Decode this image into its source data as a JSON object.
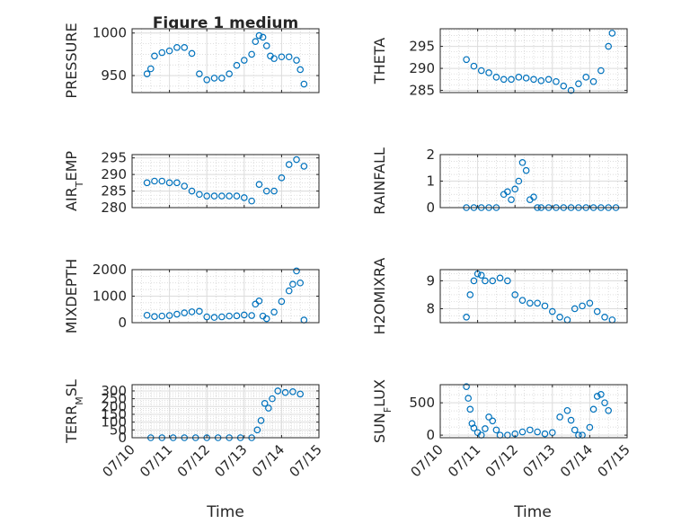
{
  "figure": {
    "title": "Figure 1 medium",
    "xlabel": "Time",
    "x_ticks": [
      "07/10",
      "07/11",
      "07/12",
      "07/13",
      "07/14",
      "07/15"
    ],
    "marker_color": "#0072bd",
    "grid": true
  },
  "chart_data": [
    {
      "type": "scatter",
      "ylabel": "PRESSURE",
      "ylim": [
        930,
        1005
      ],
      "yticks": [
        950,
        1000
      ],
      "xlim": [
        0,
        5
      ],
      "x": [
        0.4,
        0.5,
        0.6,
        0.8,
        1.0,
        1.2,
        1.4,
        1.6,
        1.8,
        2.0,
        2.2,
        2.4,
        2.6,
        2.8,
        3.0,
        3.2,
        3.3,
        3.4,
        3.5,
        3.6,
        3.7,
        3.8,
        4.0,
        4.2,
        4.4,
        4.5,
        4.6
      ],
      "y": [
        952,
        958,
        973,
        977,
        979,
        983,
        983,
        976,
        952,
        945,
        947,
        947,
        952,
        962,
        968,
        975,
        990,
        997,
        995,
        985,
        973,
        970,
        972,
        972,
        968,
        957,
        940
      ]
    },
    {
      "type": "scatter",
      "ylabel": "THETA",
      "ylim": [
        284.5,
        299
      ],
      "yticks": [
        285,
        290,
        295
      ],
      "xlim": [
        0,
        5
      ],
      "x": [
        0.7,
        0.9,
        1.1,
        1.3,
        1.5,
        1.7,
        1.9,
        2.1,
        2.3,
        2.5,
        2.7,
        2.9,
        3.1,
        3.3,
        3.5,
        3.7,
        3.9,
        4.1,
        4.3,
        4.5,
        4.6
      ],
      "y": [
        292,
        290.5,
        289.5,
        289,
        288,
        287.5,
        287.5,
        288,
        287.8,
        287.5,
        287.2,
        287.5,
        287,
        286,
        285,
        286.5,
        288,
        287,
        289.5,
        295,
        298
      ]
    },
    {
      "type": "scatter",
      "ylabel": "AIR_TEMP",
      "ylim": [
        280,
        296
      ],
      "yticks": [
        280,
        285,
        290,
        295
      ],
      "xlim": [
        0,
        5
      ],
      "x": [
        0.4,
        0.6,
        0.8,
        1.0,
        1.2,
        1.4,
        1.6,
        1.8,
        2.0,
        2.2,
        2.4,
        2.6,
        2.8,
        3.0,
        3.2,
        3.4,
        3.6,
        3.8,
        4.0,
        4.2,
        4.4,
        4.6
      ],
      "y": [
        287.5,
        288,
        288,
        287.5,
        287.5,
        286.5,
        285,
        284,
        283.5,
        283.5,
        283.5,
        283.5,
        283.5,
        283,
        282,
        287,
        285,
        285,
        289,
        293,
        294.5,
        292.5
      ]
    },
    {
      "type": "scatter",
      "ylabel": "RAINFALL",
      "ylim": [
        0,
        2
      ],
      "yticks": [
        0,
        1,
        2
      ],
      "xlim": [
        0,
        5
      ],
      "x": [
        0.7,
        0.9,
        1.1,
        1.3,
        1.5,
        1.7,
        1.8,
        1.9,
        2.0,
        2.1,
        2.2,
        2.3,
        2.4,
        2.5,
        2.6,
        2.7,
        2.9,
        3.1,
        3.3,
        3.5,
        3.7,
        3.9,
        4.1,
        4.3,
        4.5,
        4.7
      ],
      "y": [
        0,
        0,
        0,
        0,
        0,
        0.5,
        0.6,
        0.3,
        0.7,
        1.0,
        1.7,
        1.4,
        0.3,
        0.4,
        0,
        0,
        0,
        0,
        0,
        0,
        0,
        0,
        0,
        0,
        0,
        0
      ]
    },
    {
      "type": "scatter",
      "ylabel": "MIXDEPTH",
      "ylim": [
        0,
        2000
      ],
      "yticks": [
        0,
        1000,
        2000
      ],
      "xlim": [
        0,
        5
      ],
      "x": [
        0.4,
        0.6,
        0.8,
        1.0,
        1.2,
        1.4,
        1.6,
        1.8,
        2.0,
        2.2,
        2.4,
        2.6,
        2.8,
        3.0,
        3.2,
        3.3,
        3.4,
        3.5,
        3.6,
        3.8,
        4.0,
        4.2,
        4.3,
        4.4,
        4.5,
        4.6
      ],
      "y": [
        280,
        230,
        250,
        270,
        320,
        370,
        410,
        430,
        220,
        200,
        220,
        250,
        260,
        290,
        270,
        700,
        820,
        250,
        150,
        400,
        800,
        1200,
        1450,
        1950,
        1500,
        100
      ]
    },
    {
      "type": "scatter",
      "ylabel": "H2OMIXRA",
      "ylim": [
        7.5,
        9.4
      ],
      "yticks": [
        8,
        9
      ],
      "xlim": [
        0,
        5
      ],
      "x": [
        0.7,
        0.8,
        0.9,
        1.0,
        1.1,
        1.2,
        1.4,
        1.6,
        1.8,
        2.0,
        2.2,
        2.4,
        2.6,
        2.8,
        3.0,
        3.2,
        3.4,
        3.6,
        3.8,
        4.0,
        4.2,
        4.4,
        4.6
      ],
      "y": [
        7.7,
        8.5,
        9.0,
        9.25,
        9.2,
        9.0,
        9.0,
        9.1,
        9.0,
        8.5,
        8.3,
        8.2,
        8.2,
        8.1,
        7.9,
        7.7,
        7.6,
        8.0,
        8.1,
        8.2,
        7.9,
        7.7,
        7.6
      ]
    },
    {
      "type": "scatter",
      "ylabel": "TERR_MSL",
      "ylim": [
        0,
        340
      ],
      "yticks": [
        0,
        50,
        100,
        150,
        200,
        250,
        300
      ],
      "xlim": [
        0,
        5
      ],
      "x": [
        0.5,
        0.8,
        1.1,
        1.4,
        1.7,
        2.0,
        2.3,
        2.6,
        2.9,
        3.2,
        3.35,
        3.45,
        3.55,
        3.65,
        3.75,
        3.9,
        4.1,
        4.3,
        4.5
      ],
      "y": [
        0,
        0,
        0,
        0,
        0,
        0,
        0,
        0,
        0,
        0,
        50,
        110,
        220,
        190,
        250,
        300,
        290,
        295,
        280
      ]
    },
    {
      "type": "scatter",
      "ylabel": "SUN_FLUX",
      "ylim": [
        -40,
        780
      ],
      "yticks": [
        0,
        500
      ],
      "xlim": [
        0,
        5
      ],
      "x": [
        0.7,
        0.75,
        0.8,
        0.85,
        0.9,
        1.0,
        1.1,
        1.2,
        1.3,
        1.4,
        1.5,
        1.6,
        1.8,
        2.0,
        2.2,
        2.4,
        2.6,
        2.8,
        3.0,
        3.2,
        3.4,
        3.5,
        3.6,
        3.7,
        3.8,
        4.0,
        4.1,
        4.2,
        4.3,
        4.4,
        4.5
      ],
      "y": [
        750,
        570,
        400,
        180,
        110,
        40,
        0,
        100,
        280,
        220,
        80,
        0,
        0,
        20,
        50,
        80,
        50,
        20,
        40,
        280,
        380,
        230,
        80,
        0,
        0,
        120,
        400,
        600,
        630,
        500,
        380
      ]
    }
  ]
}
